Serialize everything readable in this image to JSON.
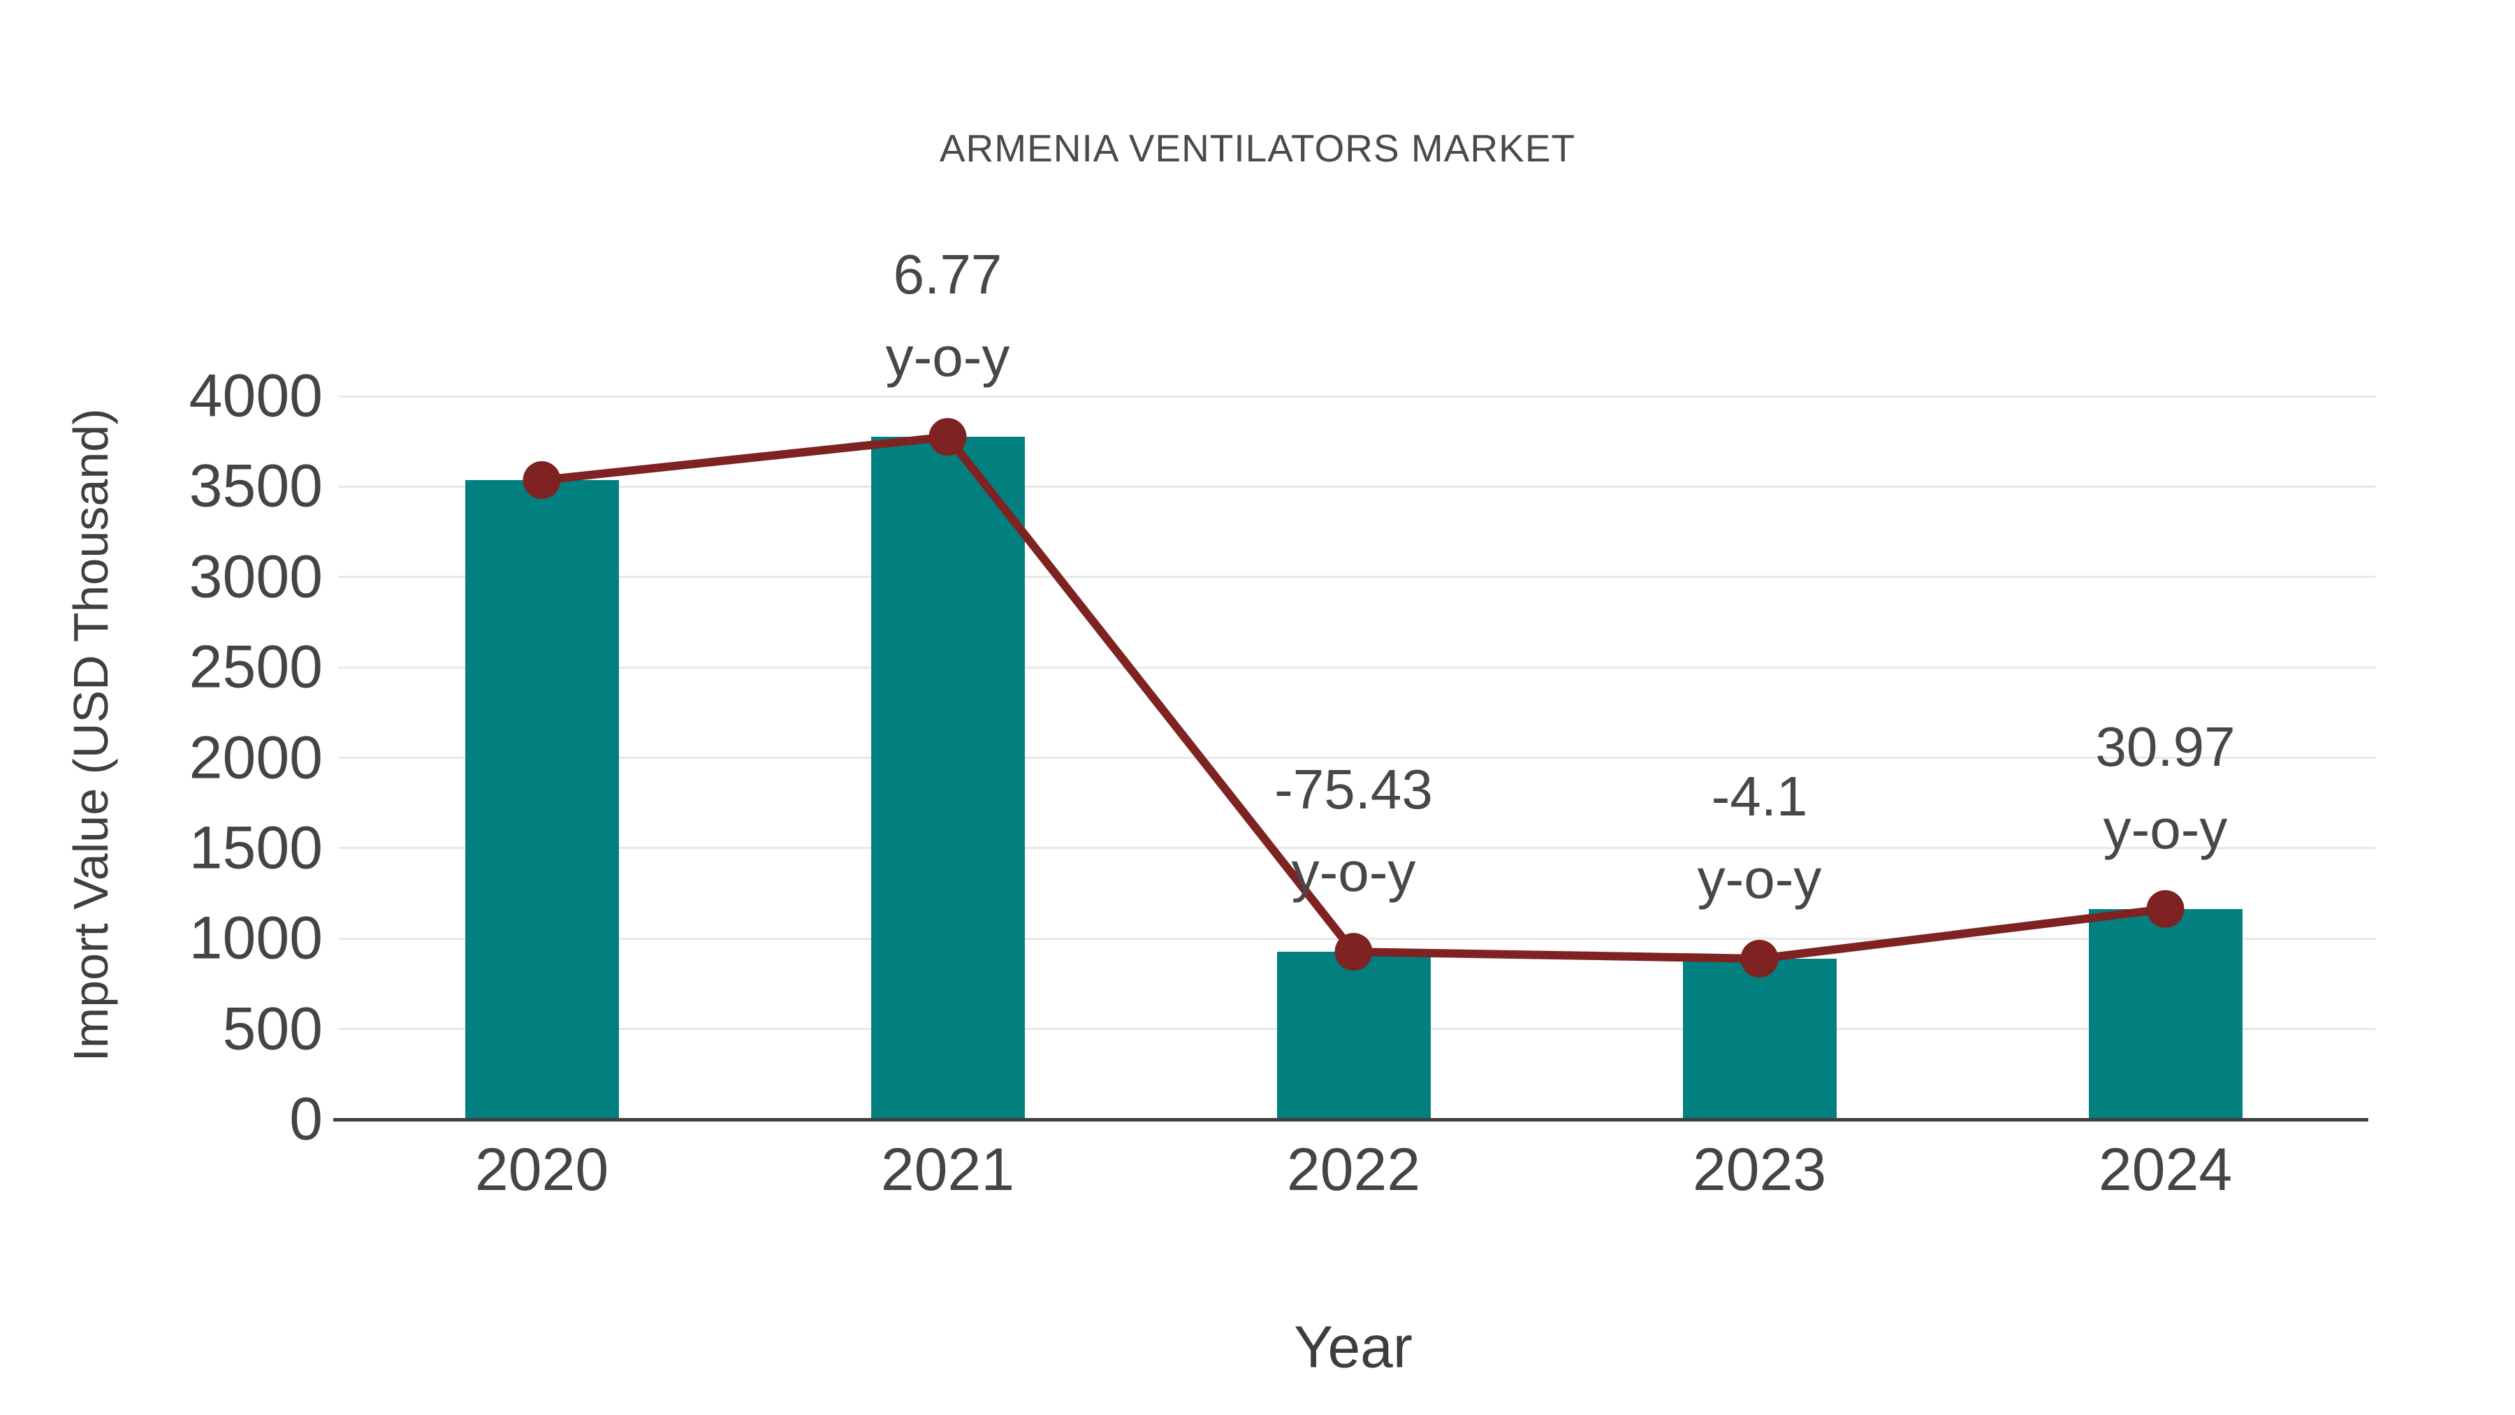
{
  "chart_data": {
    "type": "bar",
    "title": "ARMENIA VENTILATORS MARKET",
    "xlabel": "Year",
    "ylabel": "Import Value (USD Thousand)",
    "categories": [
      "2020",
      "2021",
      "2022",
      "2023",
      "2024"
    ],
    "series": [
      {
        "name": "import-value-bars",
        "type": "bar",
        "values": [
          3536,
          3775,
          927,
          889,
          1164
        ]
      },
      {
        "name": "import-value-trend",
        "type": "line",
        "values": [
          3536,
          3775,
          927,
          889,
          1164
        ]
      }
    ],
    "annotations": [
      {
        "category": "2021",
        "line1": "6.77",
        "line2": "y-o-y"
      },
      {
        "category": "2022",
        "line1": "-75.43",
        "line2": "y-o-y"
      },
      {
        "category": "2023",
        "line1": "-4.1",
        "line2": "y-o-y"
      },
      {
        "category": "2024",
        "line1": "30.97",
        "line2": "y-o-y"
      }
    ],
    "ylim": [
      0,
      4000
    ],
    "ytick_step": 500,
    "yticks": [
      "0",
      "500",
      "1000",
      "1500",
      "2000",
      "2500",
      "3000",
      "3500",
      "4000"
    ],
    "grid": true,
    "legend_position": "none",
    "colors": {
      "bar": "#028080",
      "line": "#7E2222",
      "marker": "#7E2222",
      "gridline": "#e8e8e8",
      "axis_line": "#3f3f3f",
      "tick_text": "#444444",
      "background": "#ffffff"
    }
  }
}
